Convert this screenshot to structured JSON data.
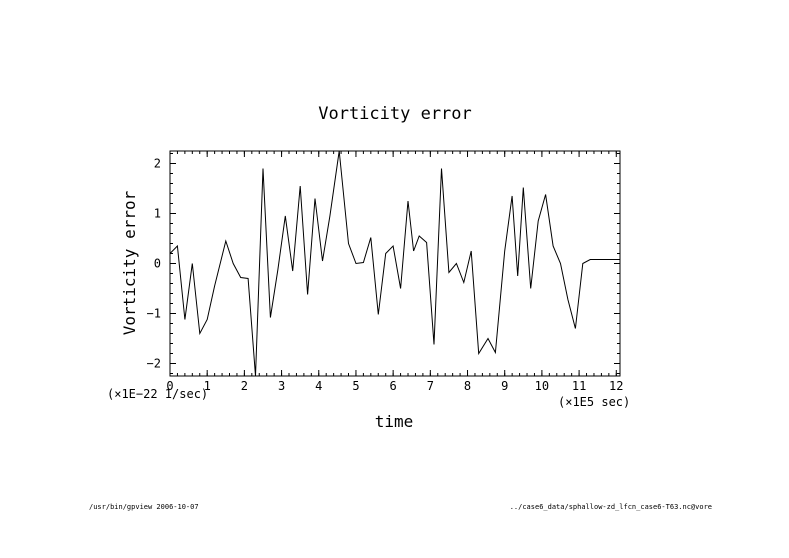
{
  "chart_data": {
    "type": "line",
    "title": "Vorticity error",
    "xlabel": "time",
    "ylabel": "Vorticity error",
    "x_scale_label": "(×1E5 sec)",
    "y_scale_label": "(×1E−22 1/sec)",
    "xlim": [
      0,
      12.1
    ],
    "ylim": [
      -2.25,
      2.25
    ],
    "x_ticks": [
      0,
      1,
      2,
      3,
      4,
      5,
      6,
      7,
      8,
      9,
      10,
      11,
      12
    ],
    "x_tick_labels": [
      "0",
      "1",
      "2",
      "3",
      "4",
      "5",
      "6",
      "7",
      "8",
      "9",
      "10",
      "11",
      "12"
    ],
    "y_ticks": [
      -2,
      -1,
      0,
      1,
      2
    ],
    "y_tick_labels": [
      "−2",
      "−1",
      "0",
      "1",
      "2"
    ],
    "grid": false,
    "series": [
      {
        "x": [
          0,
          0.2,
          0.4,
          0.6,
          0.8,
          1.0,
          1.2,
          1.5,
          1.7,
          1.9,
          2.1,
          2.3,
          2.5,
          2.7,
          2.9,
          3.1,
          3.3,
          3.5,
          3.7,
          3.9,
          4.1,
          4.3,
          4.55,
          4.8,
          5.0,
          5.2,
          5.4,
          5.6,
          5.8,
          6.0,
          6.2,
          6.4,
          6.55,
          6.7,
          6.9,
          7.1,
          7.3,
          7.5,
          7.7,
          7.9,
          8.1,
          8.3,
          8.55,
          8.75,
          9.0,
          9.2,
          9.35,
          9.5,
          9.7,
          9.9,
          10.1,
          10.3,
          10.5,
          10.7,
          10.9,
          11.1,
          11.3,
          11.5,
          11.7,
          11.9,
          12.1
        ],
        "values": [
          0.2,
          0.35,
          -1.12,
          0.0,
          -1.4,
          -1.12,
          -0.45,
          0.45,
          0.0,
          -0.28,
          -0.3,
          -2.25,
          1.9,
          -1.08,
          -0.12,
          0.95,
          -0.15,
          1.55,
          -0.62,
          1.3,
          0.05,
          0.95,
          2.25,
          0.4,
          0.0,
          0.02,
          0.52,
          -1.02,
          0.2,
          0.35,
          -0.5,
          1.25,
          0.25,
          0.55,
          0.42,
          -1.62,
          1.9,
          -0.18,
          0.0,
          -0.38,
          0.25,
          -1.8,
          -1.5,
          -1.78,
          0.25,
          1.35,
          -0.25,
          1.52,
          -0.5,
          0.85,
          1.38,
          0.35,
          0.0,
          -0.72,
          -1.3,
          0.0,
          0.08,
          0.08,
          0.08,
          0.08,
          0.08
        ]
      }
    ]
  },
  "footer": {
    "left": "/usr/bin/gpview  2006-10-07",
    "right": "../case6_data/sphallow-zd_lfcn_case6-T63.nc@vore"
  }
}
